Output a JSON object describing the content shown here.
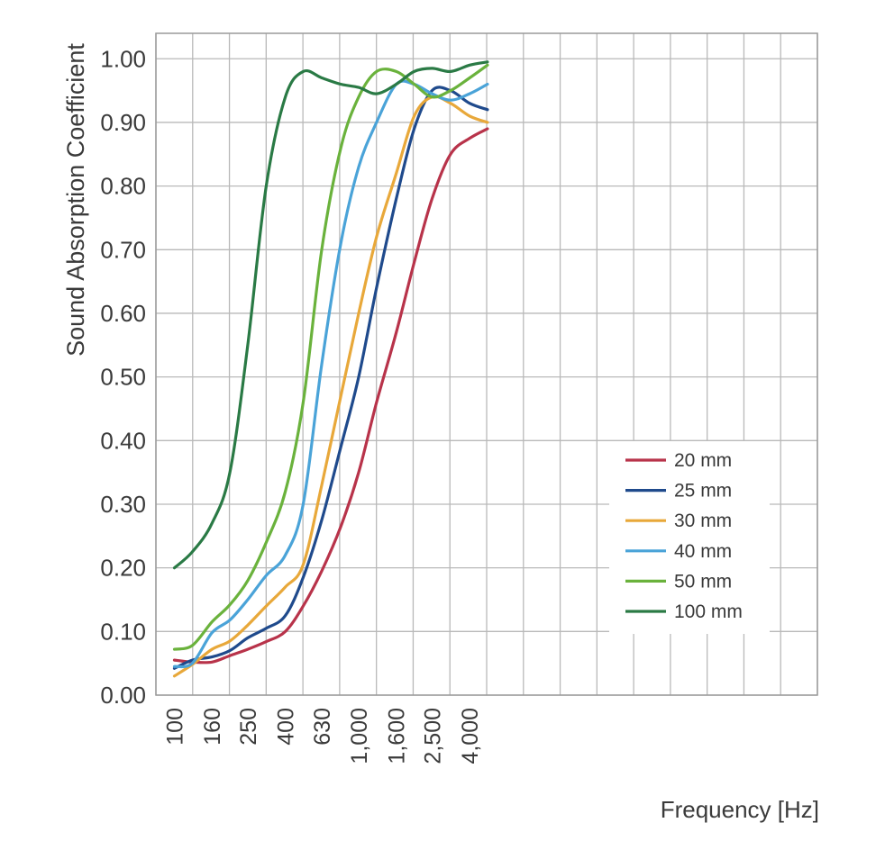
{
  "chart_data": {
    "type": "line",
    "title": "",
    "xlabel": "Frequency [Hz]",
    "ylabel": "Sound Absorption Coefficient",
    "xscale": "log (third-octave bands)",
    "ylim": [
      0,
      1.0
    ],
    "grid": true,
    "legend_position": "bottom-right",
    "x": [
      100,
      125,
      160,
      200,
      250,
      315,
      400,
      500,
      630,
      800,
      1000,
      1250,
      1600,
      2000,
      2500,
      3150,
      4000,
      5000
    ],
    "x_tick_labels": [
      "100",
      "160",
      "250",
      "400",
      "630",
      "1,000",
      "1,600",
      "2,500",
      "4,000"
    ],
    "x_tick_values": [
      100,
      160,
      250,
      400,
      630,
      1000,
      1600,
      2500,
      4000
    ],
    "y_tick_labels": [
      "0.00",
      "0.10",
      "0.20",
      "0.30",
      "0.40",
      "0.50",
      "0.60",
      "0.70",
      "0.80",
      "0.90",
      "1.00"
    ],
    "series": [
      {
        "name": "20 mm",
        "color": "#b8334a",
        "values": [
          0.055,
          0.052,
          0.052,
          0.062,
          0.072,
          0.084,
          0.1,
          0.14,
          0.195,
          0.265,
          0.35,
          0.46,
          0.57,
          0.68,
          0.78,
          0.85,
          0.875,
          0.89
        ]
      },
      {
        "name": "25 mm",
        "color": "#1f4a8c",
        "values": [
          0.042,
          0.055,
          0.06,
          0.07,
          0.09,
          0.105,
          0.125,
          0.185,
          0.275,
          0.39,
          0.5,
          0.64,
          0.78,
          0.89,
          0.95,
          0.95,
          0.93,
          0.92
        ]
      },
      {
        "name": "30 mm",
        "color": "#e8a83a",
        "values": [
          0.03,
          0.048,
          0.072,
          0.085,
          0.11,
          0.14,
          0.17,
          0.205,
          0.33,
          0.47,
          0.6,
          0.72,
          0.82,
          0.91,
          0.94,
          0.93,
          0.91,
          0.9
        ]
      },
      {
        "name": "40 mm",
        "color": "#4aa3d8",
        "values": [
          0.045,
          0.05,
          0.098,
          0.118,
          0.15,
          0.188,
          0.22,
          0.3,
          0.52,
          0.71,
          0.83,
          0.9,
          0.96,
          0.96,
          0.945,
          0.935,
          0.945,
          0.96
        ]
      },
      {
        "name": "50 mm",
        "color": "#6ab23c",
        "values": [
          0.072,
          0.078,
          0.115,
          0.142,
          0.18,
          0.24,
          0.32,
          0.46,
          0.7,
          0.86,
          0.94,
          0.98,
          0.98,
          0.96,
          0.94,
          0.95,
          0.97,
          0.99
        ]
      },
      {
        "name": "100 mm",
        "color": "#2a7a45",
        "values": [
          0.2,
          0.225,
          0.27,
          0.35,
          0.55,
          0.8,
          0.94,
          0.98,
          0.97,
          0.96,
          0.955,
          0.945,
          0.96,
          0.98,
          0.985,
          0.98,
          0.99,
          0.995
        ]
      }
    ]
  }
}
